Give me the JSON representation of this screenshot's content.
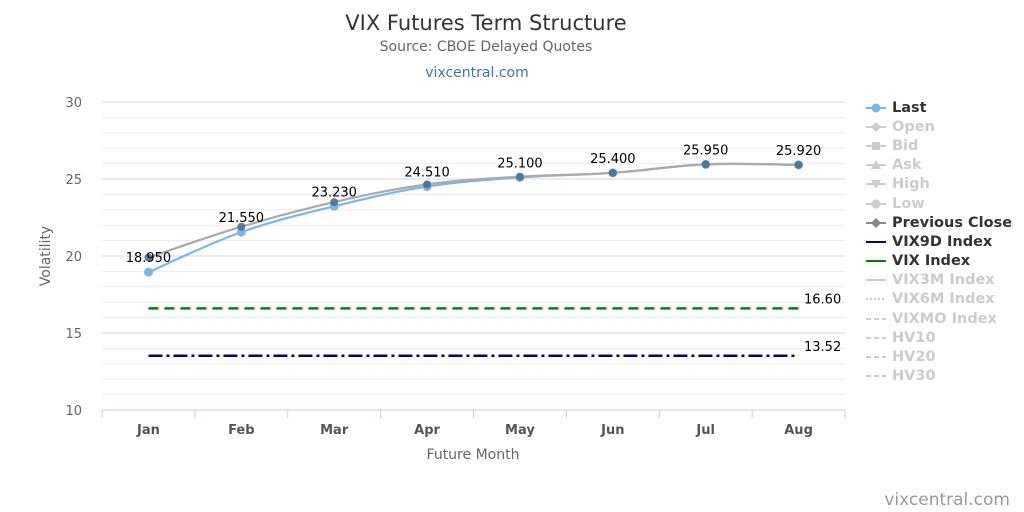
{
  "chart_data": {
    "type": "line",
    "title": "VIX Futures Term Structure",
    "subtitle": "Source: CBOE Delayed Quotes",
    "link_text": "vixcentral.com",
    "watermark": "vixcentral.com",
    "xlabel": "Future Month",
    "ylabel": "Volatility",
    "categories": [
      "Jan",
      "Feb",
      "Mar",
      "Apr",
      "May",
      "Jun",
      "Jul",
      "Aug"
    ],
    "ylim": [
      10,
      30
    ],
    "yticks": [
      "10",
      "15",
      "20",
      "25",
      "30"
    ],
    "grid": true,
    "legend_position": "right",
    "series": [
      {
        "name": "Last",
        "values": [
          18.95,
          21.55,
          23.23,
          24.51,
          25.1,
          25.4,
          25.95,
          25.92
        ],
        "labels": [
          "18.950",
          "21.550",
          "23.230",
          "24.510",
          "25.100",
          "25.400",
          "25.950",
          "25.920"
        ],
        "color": "#7cb5ec",
        "visible": true,
        "symbol": "circle"
      },
      {
        "name": "Previous Close",
        "values": [
          19.9,
          21.9,
          23.5,
          24.65,
          25.15,
          25.4,
          25.95,
          25.92
        ],
        "color": "#aaaaaa",
        "visible": true,
        "symbol": "diamond"
      },
      {
        "name": "VIX9D Index",
        "value": 13.52,
        "label": "13.52",
        "color": "#000080",
        "visible": true
      },
      {
        "name": "VIX Index",
        "value": 16.6,
        "label": "16.60",
        "color": "#008000",
        "visible": true
      }
    ],
    "legend": [
      {
        "name": "Last",
        "visible": true,
        "color": "#7cb5ec",
        "symbol": "circle-line"
      },
      {
        "name": "Open",
        "visible": false,
        "symbol": "diamond-line"
      },
      {
        "name": "Bid",
        "visible": false,
        "symbol": "square-line"
      },
      {
        "name": "Ask",
        "visible": false,
        "symbol": "triangle-line"
      },
      {
        "name": "High",
        "visible": false,
        "symbol": "triangle-down-line"
      },
      {
        "name": "Low",
        "visible": false,
        "symbol": "circle-line"
      },
      {
        "name": "Previous Close",
        "visible": true,
        "color": "#888888",
        "symbol": "diamond-line"
      },
      {
        "name": "VIX9D Index",
        "visible": true,
        "color": "#000080",
        "symbol": "solid"
      },
      {
        "name": "VIX Index",
        "visible": true,
        "color": "#008000",
        "symbol": "solid"
      },
      {
        "name": "VIX3M Index",
        "visible": false,
        "symbol": "solid"
      },
      {
        "name": "VIX6M Index",
        "visible": false,
        "symbol": "dot"
      },
      {
        "name": "VIXMO Index",
        "visible": false,
        "symbol": "dash"
      },
      {
        "name": "HV10",
        "visible": false,
        "symbol": "dash"
      },
      {
        "name": "HV20",
        "visible": false,
        "symbol": "dash"
      },
      {
        "name": "HV30",
        "visible": false,
        "symbol": "dash"
      }
    ]
  }
}
